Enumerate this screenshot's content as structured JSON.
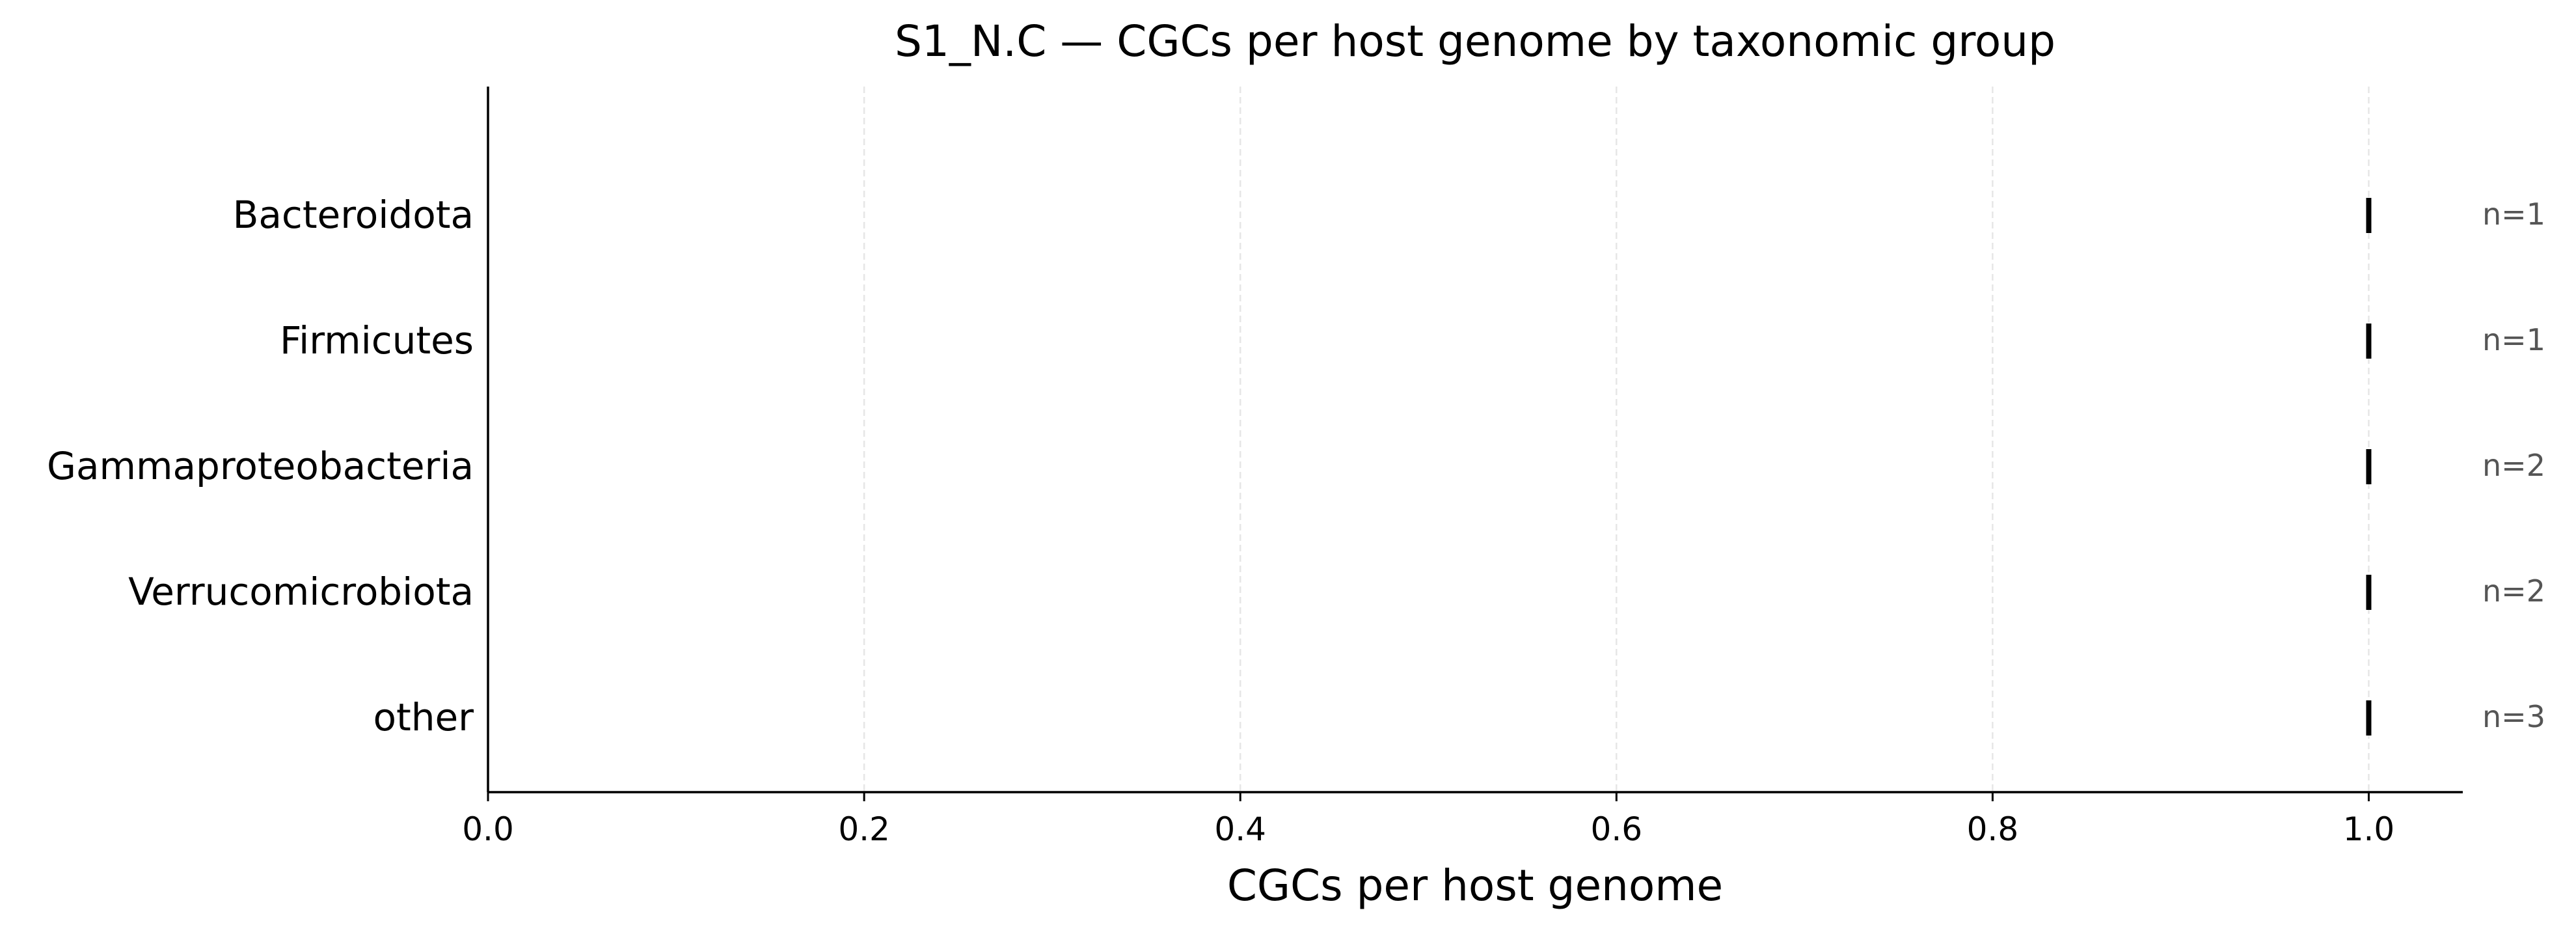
{
  "chart_data": {
    "type": "scatter",
    "title": "S1_N.C — CGCs per host genome by taxonomic group",
    "xlabel": "CGCs per host genome",
    "ylabel": "",
    "xlim": [
      0.0,
      1.05
    ],
    "xticks": [
      "0.0",
      "0.2",
      "0.4",
      "0.6",
      "0.8",
      "1.0"
    ],
    "x_grid": true,
    "categories": [
      "Bacteroidota",
      "Firmicutes",
      "Gammaproteobacteria",
      "Verrucomicrobiota",
      "other"
    ],
    "values": [
      1.0,
      1.0,
      1.0,
      1.0,
      1.0
    ],
    "counts": [
      "n=1",
      "n=1",
      "n=2",
      "n=2",
      "n=3"
    ],
    "marker": "vertical tick",
    "colors": {
      "marker": "#000000",
      "grid": "#e6e6e6",
      "count_text": "#555555"
    }
  }
}
